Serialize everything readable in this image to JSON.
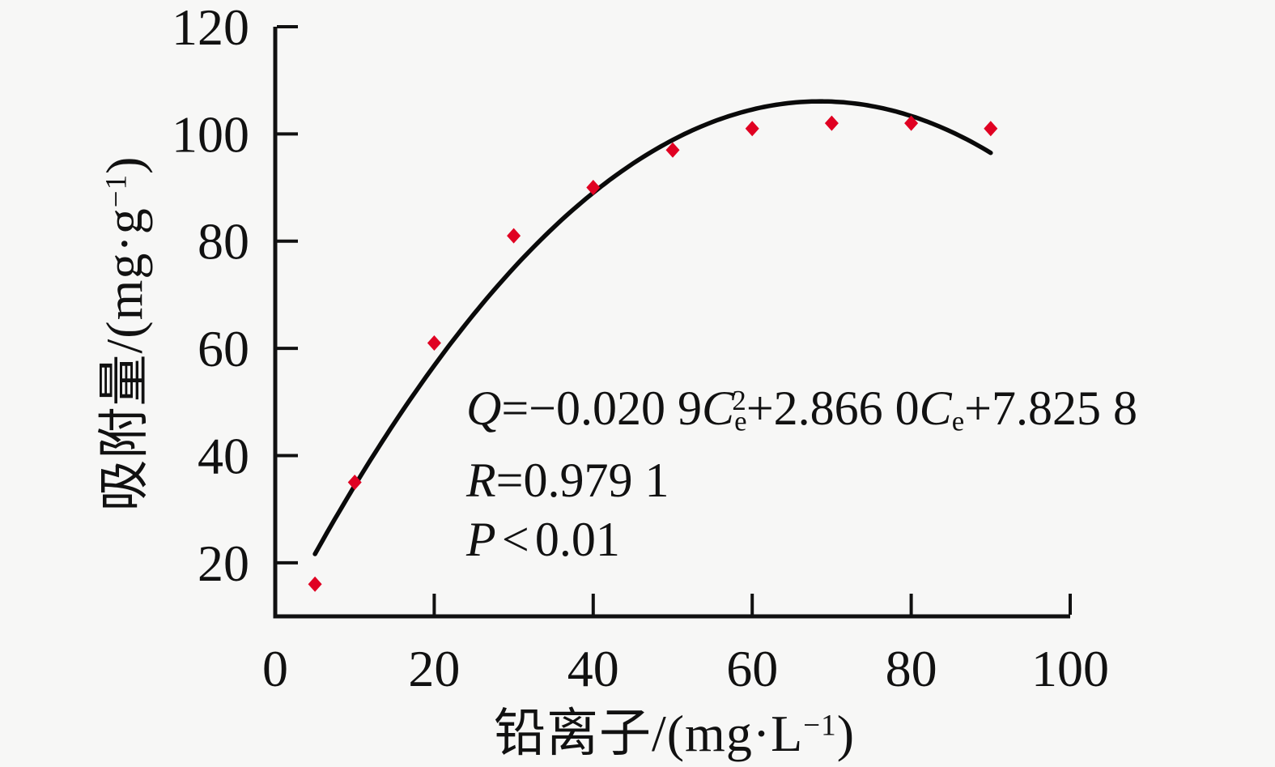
{
  "figure": {
    "background": "#f7f7f6",
    "ink": "#111111",
    "marker_color": "#e00122",
    "curve_color": "#0a0a0a"
  },
  "chart_data": {
    "type": "scatter",
    "title": "",
    "xlabel": "铅离子/(mg·L−1)",
    "ylabel": "吸附量/(mg·g−1)",
    "x": [
      5,
      10,
      20,
      30,
      40,
      50,
      60,
      70,
      80,
      90
    ],
    "y": [
      16,
      35,
      61,
      81,
      90,
      97,
      101,
      102,
      102,
      101
    ],
    "xlim": [
      0,
      100
    ],
    "ylim": [
      10,
      120
    ],
    "x_ticks": [
      0,
      20,
      40,
      60,
      80,
      100
    ],
    "y_ticks": [
      20,
      40,
      60,
      80,
      100,
      120
    ],
    "x_tick_labels": [
      "0",
      "20",
      "40",
      "60",
      "80",
      "100"
    ],
    "y_tick_labels": [
      "20",
      "40",
      "60",
      "80",
      "100",
      "120"
    ],
    "grid": false,
    "legend": "none",
    "marker": "diamond",
    "fit_curve": {
      "model": "quadratic",
      "a": -0.0209,
      "b": 2.866,
      "c": 7.8258,
      "x_start": 5,
      "x_end": 90,
      "equation_text": "Q=−0.020 9Cₑ²+2.866 0Cₑ+7.825 8",
      "r_text": "R=0.979 1",
      "p_text": "P<0.01"
    }
  },
  "annotation": {
    "line1": [
      {
        "t": "Q",
        "s": "it"
      },
      {
        "t": "=−0.020 9",
        "s": ""
      },
      {
        "t": "C",
        "s": "it"
      },
      {
        "t": "e",
        "s": "sub"
      },
      {
        "t": "2",
        "s": "sup stack"
      },
      {
        "t": "+2.866 0",
        "s": ""
      },
      {
        "t": "C",
        "s": "it"
      },
      {
        "t": "e",
        "s": "sub"
      },
      {
        "t": "+7.825 8",
        "s": ""
      }
    ],
    "line2": [
      {
        "t": "R",
        "s": "it"
      },
      {
        "t": "=0.979 1",
        "s": ""
      }
    ],
    "line3": [
      {
        "t": "P",
        "s": "it"
      },
      {
        "t": "<",
        "s": "rel"
      },
      {
        "t": "0.01",
        "s": ""
      }
    ]
  },
  "axis_titles": {
    "x": [
      {
        "t": "铅离子/(mg·L",
        "s": ""
      },
      {
        "t": "−1",
        "s": "sup"
      },
      {
        "t": ")",
        "s": ""
      }
    ],
    "y": [
      {
        "t": "吸附量/(mg·g",
        "s": ""
      },
      {
        "t": "−1",
        "s": "sup"
      },
      {
        "t": ")",
        "s": ""
      }
    ]
  }
}
